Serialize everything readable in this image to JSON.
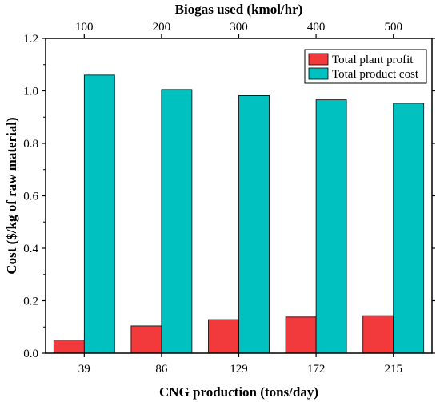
{
  "chart_data": {
    "type": "bar",
    "categories": [
      "39",
      "86",
      "129",
      "172",
      "215"
    ],
    "top_axis": {
      "label": "Biogas used (kmol/hr)",
      "ticks": [
        "100",
        "200",
        "300",
        "400",
        "500"
      ]
    },
    "xlabel": "CNG production (tons/day)",
    "ylabel": "Cost ($/kg of raw material)",
    "ylim": [
      0,
      1.2
    ],
    "yticks": [
      "0.0",
      "0.2",
      "0.4",
      "0.6",
      "0.8",
      "1.0",
      "1.2"
    ],
    "grid": false,
    "legend_position": "top-right",
    "series": [
      {
        "name": "Total plant profit",
        "color": "#f2393c",
        "values": [
          0.05,
          0.104,
          0.128,
          0.138,
          0.143
        ]
      },
      {
        "name": "Total product cost",
        "color": "#00c0c0",
        "values": [
          1.06,
          1.005,
          0.982,
          0.966,
          0.953
        ]
      }
    ]
  }
}
